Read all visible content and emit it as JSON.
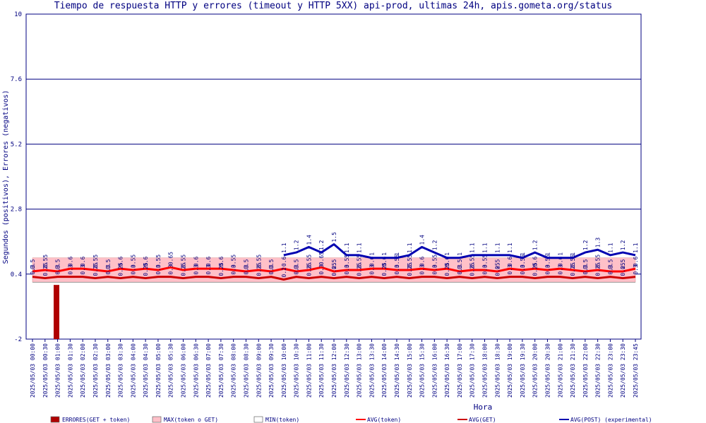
{
  "chart_data": {
    "type": "line",
    "title": "Tiempo de respuesta HTTP y errores (timeout y HTTP 5XX) api-prod, ultimas 24h, apis.gometa.org/status",
    "xlabel": "Hora",
    "ylabel": "Segundos (positivos), Errores (negativos)",
    "ylim": [
      -2,
      10
    ],
    "yticks": [
      "10",
      "7.6",
      "5.2",
      "2.8",
      "0.4",
      "-2"
    ],
    "grid": true,
    "legend_position": "bottom",
    "x": [
      "2025/05/03 00:00",
      "2025/05/03 00:30",
      "2025/05/03 01:00",
      "2025/05/03 01:30",
      "2025/05/03 02:00",
      "2025/05/03 02:30",
      "2025/05/03 03:00",
      "2025/05/03 03:30",
      "2025/05/03 04:00",
      "2025/05/03 04:30",
      "2025/05/03 05:00",
      "2025/05/03 05:30",
      "2025/05/03 06:00",
      "2025/05/03 06:30",
      "2025/05/03 07:00",
      "2025/05/03 07:30",
      "2025/05/03 08:00",
      "2025/05/03 08:30",
      "2025/05/03 09:00",
      "2025/05/03 09:30",
      "2025/05/03 10:00",
      "2025/05/03 10:30",
      "2025/05/03 11:00",
      "2025/05/03 11:30",
      "2025/05/03 12:00",
      "2025/05/03 12:30",
      "2025/05/03 13:00",
      "2025/05/03 13:30",
      "2025/05/03 14:00",
      "2025/05/03 14:30",
      "2025/05/03 15:00",
      "2025/05/03 15:30",
      "2025/05/03 16:00",
      "2025/05/03 16:30",
      "2025/05/03 17:00",
      "2025/05/03 17:30",
      "2025/05/03 18:00",
      "2025/05/03 18:30",
      "2025/05/03 19:00",
      "2025/05/03 19:30",
      "2025/05/03 20:00",
      "2025/05/03 20:30",
      "2025/05/03 21:00",
      "2025/05/03 21:30",
      "2025/05/03 22:00",
      "2025/05/03 22:30",
      "2025/05/03 23:00",
      "2025/05/03 23:30",
      "2025/05/03 23:45"
    ],
    "series": [
      {
        "name": "ERRORES(GET + token)",
        "kind": "bar",
        "color": "#b00000",
        "values": [
          0,
          0,
          0,
          0,
          -2,
          0,
          0,
          0,
          0,
          0,
          0,
          0,
          0,
          0,
          0,
          0,
          0,
          0,
          0,
          0,
          0,
          0,
          0,
          0,
          0,
          0,
          0,
          0,
          0,
          0,
          0,
          0,
          0,
          0,
          0,
          0,
          0,
          0,
          0,
          0,
          0,
          0,
          0,
          0,
          0,
          0,
          0,
          0,
          0
        ]
      },
      {
        "name": "MAX(token o GET)",
        "kind": "band_max",
        "color": "#ffc0c8",
        "values": [
          1,
          1,
          1,
          1,
          1,
          1,
          1,
          1,
          1,
          1,
          1,
          1,
          1,
          1,
          1,
          1,
          1,
          1,
          1,
          1,
          1,
          1,
          1,
          1,
          1,
          1,
          1,
          1,
          1,
          1,
          1,
          1,
          1,
          1,
          1,
          1,
          1,
          1,
          1,
          1,
          1,
          1,
          1,
          1,
          1,
          1,
          1,
          1,
          1
        ]
      },
      {
        "name": "MIN(token)",
        "kind": "band_min",
        "color": "#ffffff",
        "values": [
          0.1,
          0.1,
          0.1,
          0.1,
          0.1,
          0.1,
          0.1,
          0.1,
          0.1,
          0.1,
          0.1,
          0.1,
          0.1,
          0.1,
          0.1,
          0.1,
          0.1,
          0.1,
          0.1,
          0.1,
          0.1,
          0.1,
          0.1,
          0.1,
          0.1,
          0.1,
          0.1,
          0.1,
          0.1,
          0.1,
          0.1,
          0.1,
          0.1,
          0.1,
          0.1,
          0.1,
          0.1,
          0.1,
          0.1,
          0.1,
          0.1,
          0.1,
          0.1,
          0.1,
          0.1,
          0.1,
          0.1,
          0.1,
          0.1
        ]
      },
      {
        "name": "AVG(token)",
        "kind": "line",
        "color": "#ff0000",
        "values": [
          0.5,
          0.55,
          0.5,
          0.6,
          0.6,
          0.55,
          0.5,
          0.6,
          0.55,
          0.6,
          0.55,
          0.65,
          0.55,
          0.6,
          0.6,
          0.6,
          0.55,
          0.5,
          0.55,
          0.5,
          0.6,
          0.5,
          0.55,
          0.65,
          0.5,
          0.55,
          0.55,
          0.6,
          0.6,
          0.55,
          0.55,
          0.6,
          0.55,
          0.6,
          0.5,
          0.55,
          0.55,
          0.5,
          0.6,
          0.55,
          0.6,
          0.55,
          0.6,
          0.55,
          0.5,
          0.55,
          0.5,
          0.5,
          0.6
        ]
      },
      {
        "name": "AVG(GET)",
        "kind": "line",
        "color": "#cc0000",
        "values": [
          0.3,
          0.25,
          0.3,
          0.3,
          0.3,
          0.25,
          0.3,
          0.25,
          0.3,
          0.25,
          0.3,
          0.3,
          0.25,
          0.3,
          0.3,
          0.25,
          0.3,
          0.3,
          0.25,
          0.3,
          0.2,
          0.3,
          0.25,
          0.3,
          0.25,
          0.3,
          0.25,
          0.3,
          0.25,
          0.3,
          0.25,
          0.3,
          0.3,
          0.25,
          0.3,
          0.25,
          0.3,
          0.25,
          0.3,
          0.3,
          0.25,
          0.3,
          0.3,
          0.25,
          0.3,
          0.25,
          0.3,
          0.25,
          0.3
        ]
      },
      {
        "name": "AVG(POST) (experimental)",
        "kind": "line",
        "color": "#0000b0",
        "values": [
          null,
          null,
          null,
          null,
          null,
          null,
          null,
          null,
          null,
          null,
          null,
          null,
          null,
          null,
          null,
          null,
          null,
          null,
          null,
          null,
          1.1,
          1.2,
          1.4,
          1.2,
          1.5,
          1.1,
          1.1,
          1.0,
          1.0,
          1.0,
          1.1,
          1.4,
          1.2,
          1.0,
          1.0,
          1.1,
          1.1,
          1.1,
          1.1,
          1.0,
          1.2,
          1.0,
          1.0,
          1.0,
          1.2,
          1.3,
          1.1,
          1.2,
          1.1
        ]
      }
    ]
  }
}
